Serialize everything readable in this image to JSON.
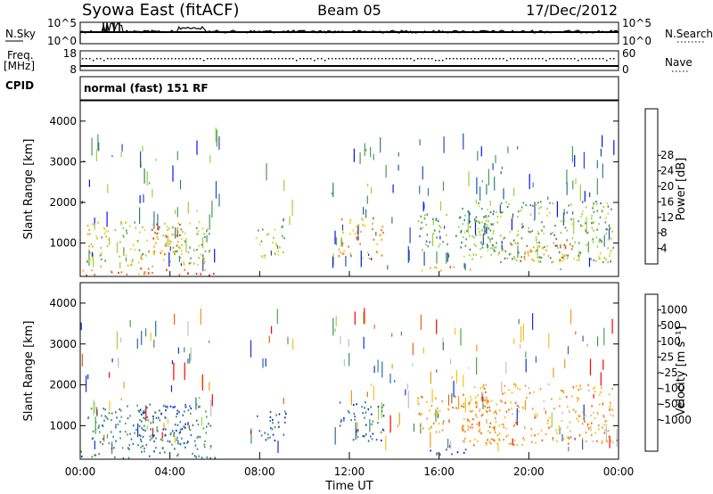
{
  "header": {
    "station": "Syowa East (fitACF)",
    "beam": "Beam 05",
    "date": "17/Dec/2012"
  },
  "top_panels": {
    "nsky_label": "N.Sky",
    "nsky_ticks": [
      "10^5",
      "10^0"
    ],
    "nsearch_label": "N.Search",
    "nsearch_ticks": [
      "10^5",
      "10^0"
    ],
    "freq_label": "Freq.",
    "freq_unit": "[MHz]",
    "freq_ticks": [
      "18",
      "8"
    ],
    "nave_label": "Nave",
    "nave_ticks": [
      "60",
      "0"
    ],
    "cpid_label": "CPID",
    "cpid_text": "normal (fast) 151 RF"
  },
  "chart_data": [
    {
      "type": "heatmap",
      "name": "power",
      "ylabel": "Slant Range [km]",
      "xlabel": "",
      "x_range_hours": [
        0,
        24
      ],
      "ylim": [
        180,
        4500
      ],
      "yticks": [
        "1000",
        "2000",
        "3000",
        "4000"
      ],
      "colorbar": {
        "label": "Power [dB]",
        "ticks": [
          "4",
          "8",
          "12",
          "16",
          "20",
          "24",
          "28"
        ],
        "colors": [
          "#0014ff",
          "#1e4fb0",
          "#2f7d80",
          "#4a9a55",
          "#9ccf3a",
          "#e6d51e",
          "#f0a418",
          "#f06a10",
          "#e8260e",
          "#ff0000"
        ]
      },
      "regions": [
        {
          "t0": 0.3,
          "t1": 5.8,
          "r0": 400,
          "r1": 1500,
          "level": 0.5
        },
        {
          "t0": 3.0,
          "t1": 4.5,
          "r0": 700,
          "r1": 1500,
          "level": 0.75
        },
        {
          "t0": 0.0,
          "t1": 6.0,
          "r0": 180,
          "r1": 350,
          "level": 0.7
        },
        {
          "t0": 4.5,
          "t1": 5.8,
          "r0": 180,
          "r1": 300,
          "level": 0.95
        },
        {
          "t0": 7.8,
          "t1": 9.2,
          "r0": 600,
          "r1": 1400,
          "level": 0.45
        },
        {
          "t0": 11.5,
          "t1": 13.5,
          "r0": 600,
          "r1": 1600,
          "level": 0.65
        },
        {
          "t0": 15.0,
          "t1": 18.5,
          "r0": 800,
          "r1": 1700,
          "level": 0.35
        },
        {
          "t0": 17.0,
          "t1": 23.8,
          "r0": 500,
          "r1": 2000,
          "level": 0.4
        },
        {
          "t0": 19.0,
          "t1": 22.0,
          "r0": 500,
          "r1": 1000,
          "level": 0.7
        },
        {
          "t0": 15.0,
          "t1": 17.5,
          "r0": 250,
          "r1": 400,
          "level": 0.7
        }
      ]
    },
    {
      "type": "heatmap",
      "name": "velocity",
      "ylabel": "Slant Range [km]",
      "xlabel": "Time UT",
      "x_range_hours": [
        0,
        24
      ],
      "xticks": [
        "00:00",
        "04:00",
        "08:00",
        "12:00",
        "16:00",
        "20:00",
        "00:00"
      ],
      "ylim": [
        180,
        4500
      ],
      "yticks": [
        "1000",
        "2000",
        "3000",
        "4000"
      ],
      "colorbar": {
        "label": "Velocity [m s⁻¹]",
        "ticks": [
          "1000",
          "500",
          "100",
          "25",
          "-25",
          "-100",
          "-500",
          "-1000"
        ],
        "colors": [
          "#1030d0",
          "#2a6aa8",
          "#3f8a6c",
          "#49a548",
          "#9bd43a",
          "#c0c0c0",
          "#f4c11e",
          "#f09a18",
          "#f06010",
          "#ff0000"
        ]
      },
      "regions": [
        {
          "t0": 0.3,
          "t1": 5.8,
          "r0": 400,
          "r1": 1500,
          "level": 0.25
        },
        {
          "t0": 2.5,
          "t1": 5.0,
          "r0": 500,
          "r1": 1500,
          "level": 0.15
        },
        {
          "t0": 0.0,
          "t1": 6.0,
          "r0": 180,
          "r1": 350,
          "level": 0.2
        },
        {
          "t0": 7.8,
          "t1": 9.2,
          "r0": 600,
          "r1": 1400,
          "level": 0.15
        },
        {
          "t0": 11.5,
          "t1": 13.5,
          "r0": 600,
          "r1": 1600,
          "level": 0.18
        },
        {
          "t0": 15.0,
          "t1": 18.5,
          "r0": 800,
          "r1": 1700,
          "level": 0.75
        },
        {
          "t0": 17.0,
          "t1": 23.8,
          "r0": 500,
          "r1": 2000,
          "level": 0.7
        },
        {
          "t0": 15.0,
          "t1": 17.5,
          "r0": 250,
          "r1": 400,
          "level": 0.2
        }
      ]
    }
  ]
}
